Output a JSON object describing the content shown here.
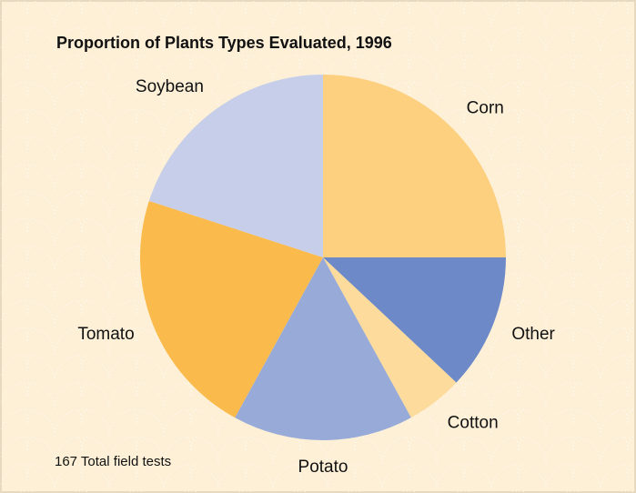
{
  "chart_data": {
    "type": "pie",
    "title": "Proportion of Plants Types Evaluated, 1996",
    "note": "167 Total field tests",
    "categories": [
      "Corn",
      "Other",
      "Cotton",
      "Potato",
      "Tomato",
      "Soybean"
    ],
    "values": [
      25,
      12,
      5,
      16,
      22,
      20
    ],
    "colors": [
      "#fdd080",
      "#6d89c8",
      "#fddb9c",
      "#97aad8",
      "#fbbb4c",
      "#c7cee9"
    ]
  }
}
